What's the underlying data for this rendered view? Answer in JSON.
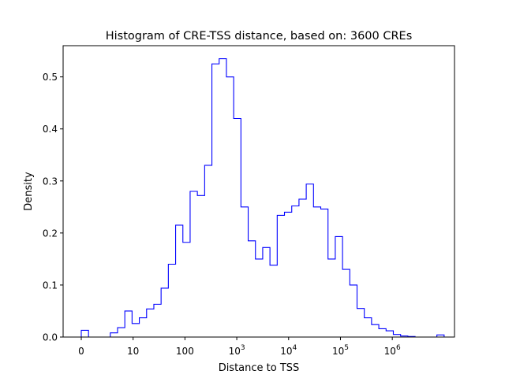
{
  "chart_data": {
    "type": "histogram",
    "title": "Histogram of CRE-TSS distance, based on: 3600 CREs",
    "xlabel": "Distance to TSS",
    "ylabel": "Density",
    "x_scale": "log10(distance + 1)",
    "xlim": [
      -0.35,
      7.2
    ],
    "ylim": [
      0,
      0.56
    ],
    "line_color": "#0000ff",
    "grid": false,
    "x_ticks": [
      {
        "value": 0,
        "base": "0",
        "exp": ""
      },
      {
        "value": 1,
        "base": "10",
        "exp": ""
      },
      {
        "value": 2,
        "base": "100",
        "exp": ""
      },
      {
        "value": 3,
        "base": "10",
        "exp": "3"
      },
      {
        "value": 4,
        "base": "10",
        "exp": "4"
      },
      {
        "value": 5,
        "base": "10",
        "exp": "5"
      },
      {
        "value": 6,
        "base": "10",
        "exp": "6"
      }
    ],
    "y_ticks": [
      {
        "value": 0.0,
        "label": "0.0"
      },
      {
        "value": 0.1,
        "label": "0.1"
      },
      {
        "value": 0.2,
        "label": "0.2"
      },
      {
        "value": 0.3,
        "label": "0.3"
      },
      {
        "value": 0.4,
        "label": "0.4"
      },
      {
        "value": 0.5,
        "label": "0.5"
      }
    ],
    "bin_edges": [
      0,
      0.14,
      0.28,
      0.42,
      0.56,
      0.7,
      0.84,
      0.98,
      1.12,
      1.26,
      1.4,
      1.54,
      1.68,
      1.82,
      1.96,
      2.1,
      2.24,
      2.38,
      2.52,
      2.66,
      2.8,
      2.94,
      3.08,
      3.22,
      3.36,
      3.5,
      3.64,
      3.78,
      3.92,
      4.06,
      4.2,
      4.34,
      4.48,
      4.62,
      4.76,
      4.9,
      5.04,
      5.18,
      5.32,
      5.46,
      5.6,
      5.74,
      5.88,
      6.02,
      6.16,
      6.3,
      6.44,
      6.58,
      6.72,
      6.86,
      7.0
    ],
    "densities": [
      0.013,
      0.0,
      0.0,
      0.0,
      0.008,
      0.018,
      0.05,
      0.026,
      0.037,
      0.054,
      0.063,
      0.094,
      0.14,
      0.215,
      0.182,
      0.28,
      0.272,
      0.33,
      0.525,
      0.535,
      0.5,
      0.42,
      0.25,
      0.185,
      0.15,
      0.172,
      0.138,
      0.234,
      0.24,
      0.252,
      0.265,
      0.294,
      0.25,
      0.246,
      0.15,
      0.193,
      0.13,
      0.1,
      0.055,
      0.037,
      0.024,
      0.016,
      0.012,
      0.005,
      0.002,
      0.001,
      0.0,
      0.0,
      0.0,
      0.004
    ]
  }
}
